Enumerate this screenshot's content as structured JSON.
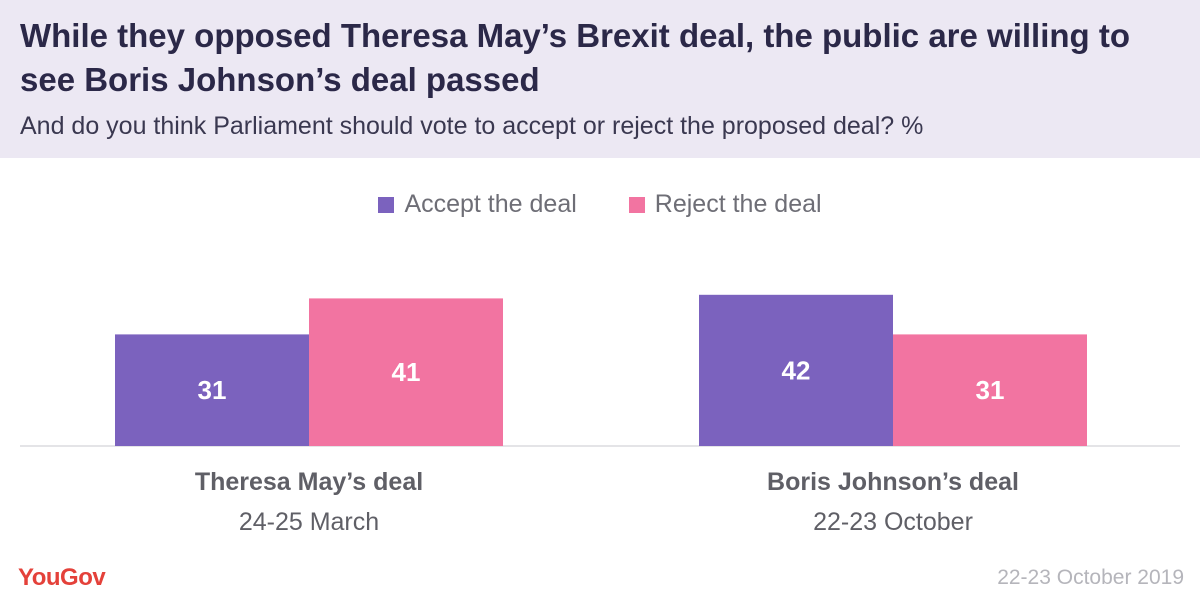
{
  "title": "While they opposed Theresa May’s Brexit deal, the public are willing to see Boris Johnson’s deal passed",
  "subtitle": "And do you think Parliament should vote to accept or reject the proposed deal? %",
  "logo": "YouGov",
  "date": "22-23 October 2019",
  "colors": {
    "accept": "#7b62be",
    "reject": "#f274a1",
    "header_bg": "#ece8f3"
  },
  "chart_data": {
    "type": "bar",
    "categories": [
      "Theresa May’s deal",
      "Boris Johnson’s deal"
    ],
    "category_dates": [
      "24-25 March",
      "22-23 October"
    ],
    "series": [
      {
        "name": "Accept the deal",
        "values": [
          31,
          42
        ]
      },
      {
        "name": "Reject the deal",
        "values": [
          41,
          31
        ]
      }
    ],
    "legend": "top-center",
    "grid": false
  }
}
